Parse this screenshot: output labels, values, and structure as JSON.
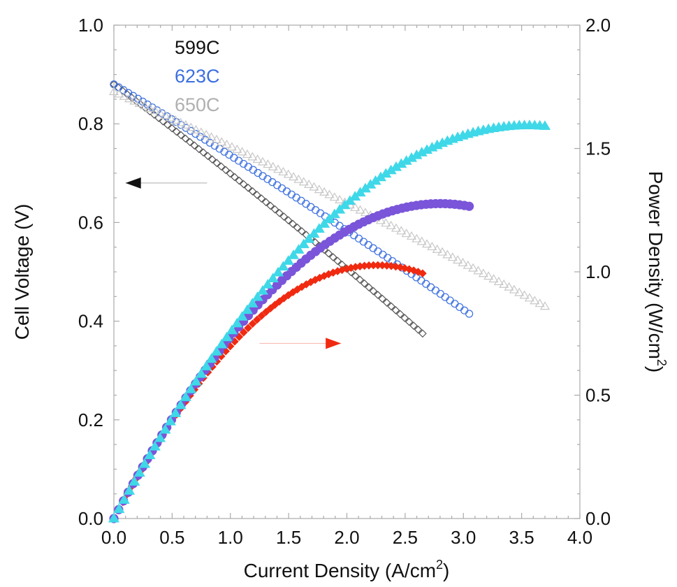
{
  "chart_data": {
    "type": "scatter",
    "xlabel": "Current Density (A/cm",
    "xlabel_sup": "2",
    "xlabel_suffix": ")",
    "ylabel_left": "Cell Voltage (V)",
    "ylabel_right": "Power Density (W/cm",
    "ylabel_right_sup": "2",
    "ylabel_right_suffix": ")",
    "xlim": [
      0,
      4
    ],
    "ylim_left": [
      0,
      1
    ],
    "ylim_right": [
      0,
      2
    ],
    "x_ticks": [
      "0.0",
      "0.5",
      "1.0",
      "1.5",
      "2.0",
      "2.5",
      "3.0",
      "3.5",
      "4.0"
    ],
    "y_left_ticks": [
      "0.0",
      "0.2",
      "0.4",
      "0.6",
      "0.8",
      "1.0"
    ],
    "y_right_ticks": [
      "0.0",
      "0.5",
      "1.0",
      "1.5",
      "2.0"
    ],
    "legend_position": "top-left",
    "legend": [
      {
        "label": "599C",
        "color": "#111111"
      },
      {
        "label": "623C",
        "color": "#3b6fe0"
      },
      {
        "label": "650C",
        "color": "#b0b0b0"
      }
    ],
    "series": [
      {
        "name": "599C",
        "kind": "voltage",
        "axis": "left",
        "marker": "diamond-open",
        "color": "#555555",
        "x_end": 2.65,
        "v_start": 0.88,
        "v_end": 0.375,
        "n": 70
      },
      {
        "name": "623C",
        "kind": "voltage",
        "axis": "left",
        "marker": "circle-open",
        "color": "#3b6fe0",
        "x_end": 3.05,
        "v_start": 0.88,
        "v_end": 0.415,
        "n": 75
      },
      {
        "name": "650C",
        "kind": "voltage",
        "axis": "left",
        "marker": "triangle-open",
        "color": "#c8c8c8",
        "x_end": 3.7,
        "v_start": 0.865,
        "v_end": 0.43,
        "n": 85
      },
      {
        "name": "599C",
        "kind": "power",
        "axis": "right",
        "marker": "diamond-filled",
        "color": "#f02a10",
        "x_end": 2.65,
        "n": 70
      },
      {
        "name": "623C",
        "kind": "power",
        "axis": "right",
        "marker": "circle-filled",
        "color": "#7a55d9",
        "x_end": 3.05,
        "n": 75
      },
      {
        "name": "650C",
        "kind": "power",
        "axis": "right",
        "marker": "triangle-filled",
        "color": "#3fd8e8",
        "x_end": 3.7,
        "n": 85
      }
    ],
    "annotations": [
      {
        "type": "arrow",
        "direction": "left",
        "color": "#111111",
        "tail": [
          0.8,
          0.68
        ],
        "head": [
          0.1,
          0.68
        ],
        "axis": "left"
      },
      {
        "type": "arrow",
        "direction": "right",
        "color": "#f02a10",
        "tail": [
          1.25,
          0.355
        ],
        "head": [
          1.95,
          0.355
        ],
        "axis": "left"
      }
    ]
  }
}
